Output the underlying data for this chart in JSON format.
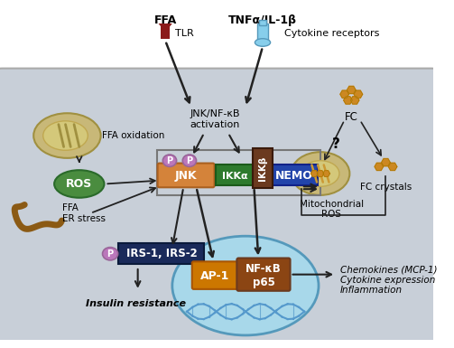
{
  "bg_top": "#e8e8e8",
  "bg_cell": "#c8cfd8",
  "bg_nucleus": "#a8d8ea",
  "border_color": "#888888",
  "white_bg": "#ffffff",
  "labels": {
    "FFA_top": "FFA",
    "TLR": "TLR",
    "TNFa": "TNFα/IL-1β",
    "cytokine_rec": "Cytokine receptors",
    "jnk_nfkb": "JNK/NF-κB\nactivation",
    "FFA_oxidation": "FFA oxidation",
    "ROS": "ROS",
    "FFA_ER": "FFA\nER stress",
    "IRS": "IRS-1, IRS-2",
    "insulin_res": "Insulin resistance",
    "JNK": "JNK",
    "IKKa": "IKKα",
    "IKKb": "IKKβ",
    "NEMO": "NEMO",
    "FC": "FC",
    "FC_crystals": "FC crystals",
    "Mito_ROS": "Mitochondrial\nROS",
    "AP1": "AP-1",
    "NFkB": "NF-κB\np65",
    "chemokines": "Chemokines (MCP-1)\nCytokine expression\nInflammation",
    "P": "P"
  },
  "colors": {
    "tlr_receptor": "#8b1a1a",
    "cytokine_receptor": "#87ceeb",
    "mitochondria_outer": "#c8b878",
    "mitochondria_inner": "#d4c87a",
    "ROS_green": "#4a8c3f",
    "ER_brown": "#8b5a14",
    "JNK_orange": "#d4833a",
    "IKKa_green": "#2d7a2d",
    "IKKb_brown": "#6b3a1f",
    "NEMO_blue": "#2244aa",
    "P_purple": "#bb77bb",
    "IRS_dark": "#1a2a5a",
    "AP1_orange": "#cc7700",
    "NFkB_brown": "#8b4513",
    "FC_orange": "#cc8822",
    "arrow_dark": "#222222",
    "DNA_blue": "#5599cc"
  }
}
